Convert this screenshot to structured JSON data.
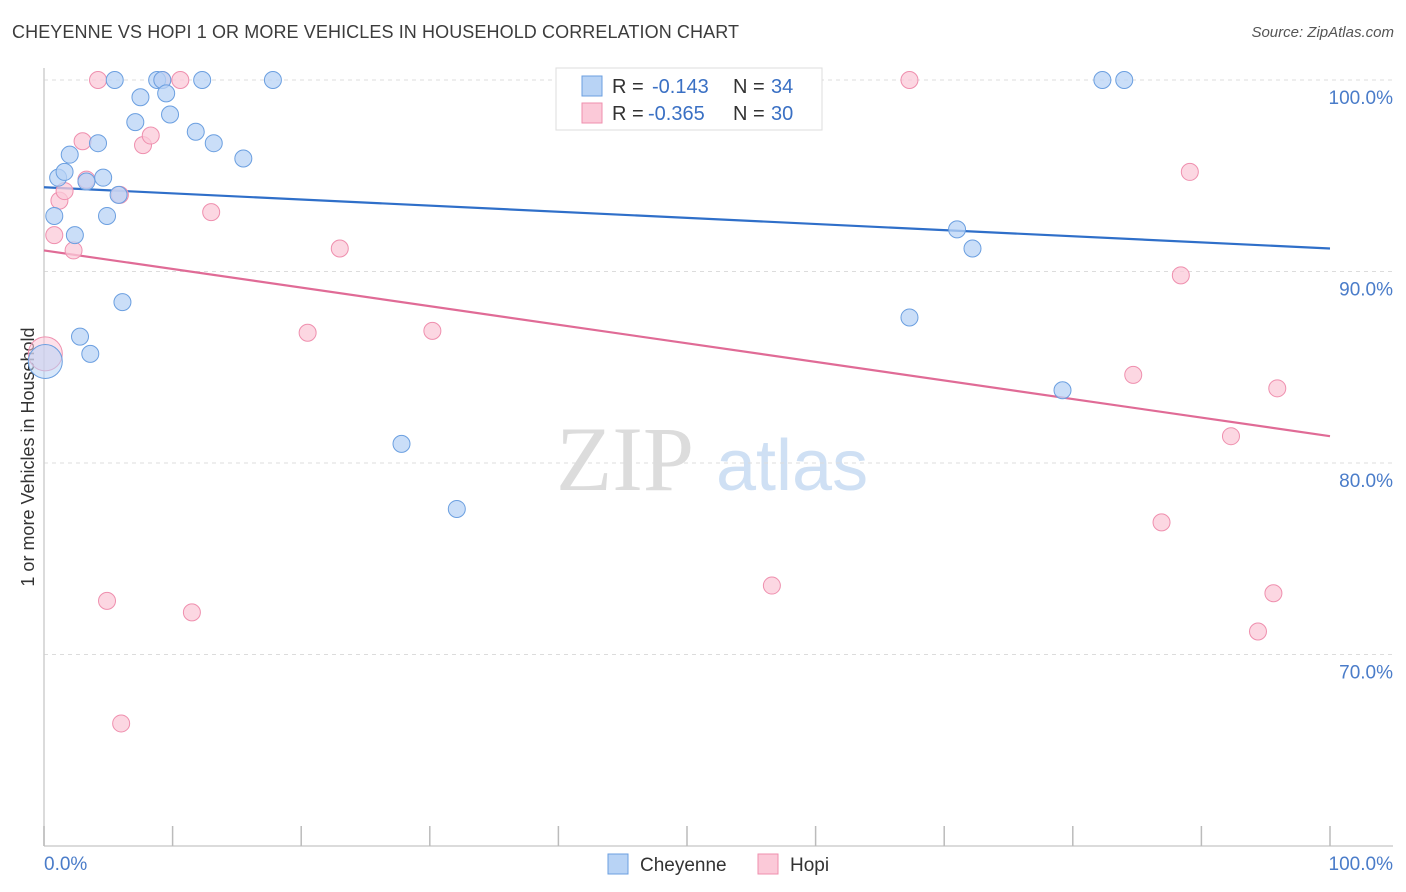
{
  "title": "CHEYENNE VS HOPI 1 OR MORE VEHICLES IN HOUSEHOLD CORRELATION CHART",
  "source": "Source: ZipAtlas.com",
  "watermark": {
    "zip": "ZIP",
    "atlas": "atlas"
  },
  "legend_box": [
    {
      "r_label": "R =",
      "r_value": "-0.143",
      "n_label": "N =",
      "n_value": "34"
    },
    {
      "r_label": "R =",
      "r_value": "-0.365",
      "n_label": "N =",
      "n_value": "30"
    }
  ],
  "colors": {
    "cheyenne_fill": "#b8d3f5",
    "cheyenne_stroke": "#6b9fe0",
    "cheyenne_line": "#2f6fc9",
    "hopi_fill": "#fbc9d8",
    "hopi_stroke": "#ef8fae",
    "hopi_line": "#e06b96",
    "grid": "#dcdcdc",
    "tick_label": "#4a7cc9"
  },
  "chart_data": {
    "type": "scatter",
    "title": "CHEYENNE VS HOPI 1 OR MORE VEHICLES IN HOUSEHOLD CORRELATION CHART",
    "xlabel": "",
    "ylabel": "1 or more Vehicles in Household",
    "xlim": [
      0,
      100
    ],
    "ylim": [
      60,
      102
    ],
    "x_tick_labels": [
      "0.0%",
      "100.0%"
    ],
    "y_ticks": [
      {
        "value": 70,
        "label": "70.0%"
      },
      {
        "value": 80,
        "label": "80.0%"
      },
      {
        "value": 90,
        "label": "90.0%"
      },
      {
        "value": 100,
        "label": "100.0%"
      }
    ],
    "grid": true,
    "legend_position": "bottom",
    "series": [
      {
        "name": "Cheyenne",
        "r": -0.143,
        "n": 34,
        "trend": {
          "x": [
            0,
            100
          ],
          "y": [
            94.4,
            91.2
          ]
        },
        "points": [
          {
            "x": 0.1,
            "y": 85.3,
            "big": true
          },
          {
            "x": 0.8,
            "y": 92.9
          },
          {
            "x": 1.1,
            "y": 94.9
          },
          {
            "x": 1.6,
            "y": 95.2
          },
          {
            "x": 2.0,
            "y": 96.1
          },
          {
            "x": 2.4,
            "y": 91.9
          },
          {
            "x": 2.8,
            "y": 86.6
          },
          {
            "x": 3.3,
            "y": 94.7
          },
          {
            "x": 3.6,
            "y": 85.7
          },
          {
            "x": 4.2,
            "y": 96.7
          },
          {
            "x": 4.6,
            "y": 94.9
          },
          {
            "x": 4.9,
            "y": 92.9
          },
          {
            "x": 5.5,
            "y": 100.0
          },
          {
            "x": 5.8,
            "y": 94.0
          },
          {
            "x": 6.1,
            "y": 88.4
          },
          {
            "x": 7.1,
            "y": 97.8
          },
          {
            "x": 7.5,
            "y": 99.1
          },
          {
            "x": 8.8,
            "y": 100.0
          },
          {
            "x": 9.2,
            "y": 100.0
          },
          {
            "x": 9.5,
            "y": 99.3
          },
          {
            "x": 9.8,
            "y": 98.2
          },
          {
            "x": 11.8,
            "y": 97.3
          },
          {
            "x": 12.3,
            "y": 100.0
          },
          {
            "x": 13.2,
            "y": 96.7
          },
          {
            "x": 15.5,
            "y": 95.9
          },
          {
            "x": 17.8,
            "y": 100.0
          },
          {
            "x": 27.8,
            "y": 81.0
          },
          {
            "x": 32.1,
            "y": 77.6
          },
          {
            "x": 67.3,
            "y": 87.6
          },
          {
            "x": 71.0,
            "y": 92.2
          },
          {
            "x": 72.2,
            "y": 91.2
          },
          {
            "x": 79.2,
            "y": 83.8
          },
          {
            "x": 82.3,
            "y": 100.0
          },
          {
            "x": 84.0,
            "y": 100.0
          }
        ]
      },
      {
        "name": "Hopi",
        "r": -0.365,
        "n": 30,
        "trend": {
          "x": [
            0,
            100
          ],
          "y": [
            91.1,
            81.4
          ]
        },
        "points": [
          {
            "x": 0.1,
            "y": 85.7,
            "big": true
          },
          {
            "x": 0.8,
            "y": 91.9
          },
          {
            "x": 1.2,
            "y": 93.7
          },
          {
            "x": 1.6,
            "y": 94.2
          },
          {
            "x": 2.3,
            "y": 91.1
          },
          {
            "x": 3.0,
            "y": 96.8
          },
          {
            "x": 3.3,
            "y": 94.8
          },
          {
            "x": 4.2,
            "y": 100.0
          },
          {
            "x": 4.9,
            "y": 72.8
          },
          {
            "x": 5.9,
            "y": 94.0
          },
          {
            "x": 6.0,
            "y": 66.4
          },
          {
            "x": 7.7,
            "y": 96.6
          },
          {
            "x": 8.3,
            "y": 97.1
          },
          {
            "x": 9.2,
            "y": 100.0
          },
          {
            "x": 10.6,
            "y": 100.0
          },
          {
            "x": 11.5,
            "y": 72.2
          },
          {
            "x": 13.0,
            "y": 93.1
          },
          {
            "x": 20.5,
            "y": 86.8
          },
          {
            "x": 23.0,
            "y": 91.2
          },
          {
            "x": 30.2,
            "y": 86.9
          },
          {
            "x": 56.6,
            "y": 73.6
          },
          {
            "x": 67.3,
            "y": 100.0
          },
          {
            "x": 84.7,
            "y": 84.6
          },
          {
            "x": 86.9,
            "y": 76.9
          },
          {
            "x": 88.4,
            "y": 89.8
          },
          {
            "x": 89.1,
            "y": 95.2
          },
          {
            "x": 92.3,
            "y": 81.4
          },
          {
            "x": 94.4,
            "y": 71.2
          },
          {
            "x": 95.6,
            "y": 73.2
          },
          {
            "x": 95.9,
            "y": 83.9
          }
        ]
      }
    ]
  }
}
